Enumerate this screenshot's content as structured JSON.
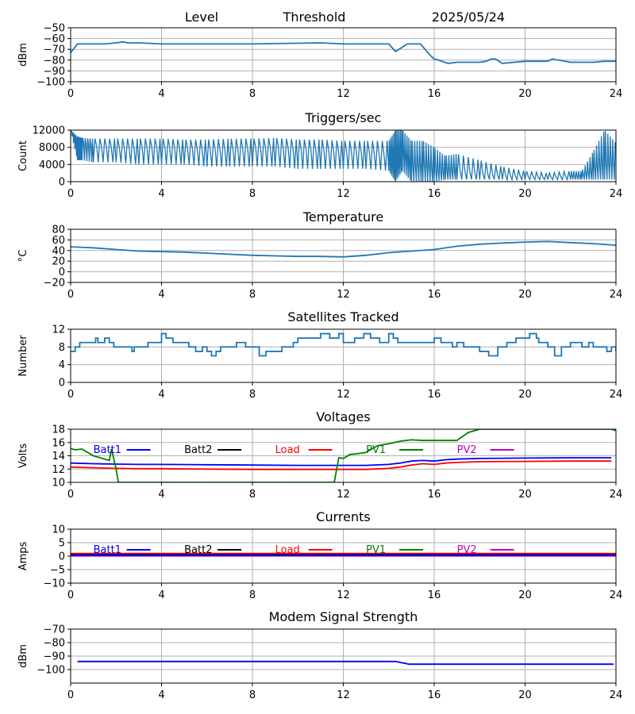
{
  "header": {
    "level": "Level",
    "threshold": "Threshold",
    "date": "2025/05/24"
  },
  "legend_labels": [
    "Batt1",
    "Batt2",
    "Load",
    "PV1",
    "PV2"
  ],
  "colors": {
    "blue": "#1f77b4",
    "batt1": "#0000ff",
    "batt2": "#000000",
    "load": "#ff0000",
    "pv1": "#008000",
    "pv2": "#bf00bf",
    "grid": "#b0b0b0"
  },
  "chart_data": [
    {
      "type": "line",
      "title": "",
      "ylabel": "dBm",
      "ylim": [
        -100,
        -50
      ],
      "yticks": [
        "−50",
        "−60",
        "−70",
        "−80",
        "−90",
        "−100"
      ],
      "ytick_values": [
        -50,
        -60,
        -70,
        -80,
        -90,
        -100
      ],
      "xlim": [
        0,
        24
      ],
      "xticks": [
        "0",
        "4",
        "8",
        "12",
        "16",
        "20",
        "24"
      ],
      "grid": true,
      "series": [
        {
          "color": "#1f77b4",
          "x": [
            0,
            0.3,
            0.4,
            1.5,
            2,
            2.3,
            2.5,
            3,
            4,
            5,
            8,
            11,
            12,
            13,
            14,
            14.3,
            14.6,
            14.8,
            15.4,
            15.8,
            16,
            16.2,
            16.6,
            17,
            18,
            18.3,
            18.5,
            18.7,
            19,
            20,
            21,
            21.2,
            22,
            23,
            23.5,
            24
          ],
          "y": [
            -73,
            -65,
            -65,
            -65,
            -64,
            -63,
            -64,
            -64,
            -65,
            -65,
            -65,
            -64,
            -65,
            -65,
            -65,
            -72,
            -68,
            -65,
            -65,
            -75,
            -79,
            -80,
            -83,
            -82,
            -82,
            -81,
            -79,
            -79,
            -83,
            -81,
            -81,
            -79,
            -82,
            -82,
            -81,
            -81
          ]
        }
      ]
    },
    {
      "type": "line",
      "title": "Triggers/sec",
      "ylabel": "Count",
      "ylim": [
        0,
        12000
      ],
      "yticks": [
        "12000",
        "8000",
        "4000",
        "0"
      ],
      "ytick_values": [
        12000,
        8000,
        4000,
        0
      ],
      "xlim": [
        0,
        24
      ],
      "xticks": [
        "0",
        "4",
        "8",
        "12",
        "16",
        "20",
        "24"
      ],
      "grid": true,
      "series": [
        {
          "color": "#1f77b4",
          "x": [
            0,
            0.3,
            0.5,
            1,
            2,
            3,
            4,
            5,
            6,
            7,
            8,
            9,
            10,
            11,
            12,
            13,
            14,
            14.3,
            14.6,
            15,
            15.5,
            16,
            16.5,
            17,
            18,
            19,
            20,
            21,
            22,
            22.5,
            23,
            23.5,
            24
          ],
          "y": [
            12000,
            9500,
            9000,
            8500,
            8000,
            8000,
            8200,
            8000,
            7500,
            7600,
            8000,
            8100,
            7800,
            7500,
            7200,
            7000,
            6500,
            2000,
            7000,
            3000,
            4000,
            2500,
            2000,
            2500,
            2000,
            1500,
            1200,
            1000,
            1300,
            1200,
            2500,
            4000,
            5000
          ],
          "min": [
            12000,
            5000,
            5000,
            4500,
            4500,
            4000,
            4000,
            4000,
            3500,
            3500,
            3500,
            3500,
            3000,
            3000,
            3000,
            3000,
            2500,
            0,
            2500,
            0,
            0,
            0,
            500,
            500,
            500,
            500,
            500,
            500,
            500,
            500,
            500,
            500,
            500
          ],
          "max": [
            12000,
            10500,
            10200,
            10000,
            10000,
            10000,
            10000,
            9800,
            9800,
            10000,
            10000,
            10200,
            9800,
            9800,
            9500,
            9500,
            9500,
            12000,
            12000,
            9500,
            9500,
            8000,
            6000,
            6500,
            5000,
            3500,
            2500,
            2000,
            2500,
            2500,
            7000,
            12000,
            9000
          ]
        }
      ]
    },
    {
      "type": "line",
      "title": "Temperature",
      "ylabel": "°C",
      "ylim": [
        -20,
        80
      ],
      "yticks": [
        "80",
        "60",
        "40",
        "20",
        "0",
        "−20"
      ],
      "ytick_values": [
        80,
        60,
        40,
        20,
        0,
        -20
      ],
      "xlim": [
        0,
        24
      ],
      "xticks": [
        "0",
        "4",
        "8",
        "12",
        "16",
        "20",
        "24"
      ],
      "grid": true,
      "series": [
        {
          "color": "#1f77b4",
          "x": [
            0,
            1,
            2,
            3,
            4,
            5,
            6,
            7,
            8,
            9,
            10,
            11,
            12,
            13,
            14,
            15,
            16,
            17,
            18,
            19,
            20,
            21,
            22,
            23,
            24
          ],
          "y": [
            47,
            45,
            42,
            39,
            38,
            37,
            35,
            33,
            31,
            30,
            29,
            29,
            28,
            31,
            36,
            39,
            42,
            48,
            52,
            54,
            56,
            57,
            55,
            53,
            50
          ]
        }
      ]
    },
    {
      "type": "line",
      "title": "Satellites Tracked",
      "ylabel": "Number",
      "ylim": [
        0,
        12
      ],
      "yticks": [
        "12",
        "8",
        "4",
        "0"
      ],
      "ytick_values": [
        12,
        8,
        4,
        0
      ],
      "xlim": [
        0,
        24
      ],
      "xticks": [
        "0",
        "4",
        "8",
        "12",
        "16",
        "20",
        "24"
      ],
      "grid": true,
      "step": true,
      "series": [
        {
          "color": "#1f77b4",
          "x": [
            0,
            0.2,
            0.4,
            1,
            1.1,
            1.2,
            1.5,
            1.7,
            1.9,
            2.5,
            2.7,
            2.8,
            3,
            3.4,
            3.8,
            4,
            4.2,
            4.5,
            5,
            5.2,
            5.5,
            5.8,
            6,
            6.2,
            6.4,
            6.6,
            7,
            7.3,
            7.7,
            8,
            8.3,
            8.6,
            8.8,
            9.3,
            9.8,
            10,
            10.5,
            11,
            11.4,
            11.6,
            11.8,
            12,
            12.2,
            12.5,
            12.9,
            13.2,
            13.6,
            14,
            14.2,
            14.4,
            15,
            15.5,
            16,
            16.3,
            16.8,
            17,
            17.3,
            17.5,
            18,
            18.2,
            18.4,
            18.8,
            19.2,
            19.6,
            20,
            20.2,
            20.5,
            20.6,
            21,
            21.3,
            21.6,
            22,
            22.5,
            22.8,
            23,
            23.3,
            23.6,
            23.8,
            24
          ],
          "y": [
            7,
            8,
            9,
            9,
            10,
            9,
            10,
            9,
            8,
            8,
            7,
            8,
            8,
            9,
            9,
            11,
            10,
            9,
            9,
            8,
            7,
            8,
            7,
            6,
            7,
            8,
            8,
            9,
            8,
            8,
            6,
            7,
            7,
            8,
            9,
            10,
            10,
            11,
            10,
            10,
            11,
            9,
            9,
            10,
            11,
            10,
            9,
            11,
            10,
            9,
            9,
            9,
            10,
            9,
            8,
            9,
            8,
            8,
            7,
            7,
            6,
            8,
            9,
            10,
            10,
            11,
            10,
            9,
            8,
            6,
            8,
            9,
            8,
            9,
            8,
            8,
            7,
            8,
            7
          ]
        }
      ]
    },
    {
      "type": "line",
      "title": "Voltages",
      "ylabel": "Volts",
      "ylim": [
        10,
        18
      ],
      "yticks": [
        "18",
        "16",
        "14",
        "12",
        "10"
      ],
      "ytick_values": [
        18,
        16,
        14,
        12,
        10
      ],
      "xlim": [
        0,
        24
      ],
      "xticks": [
        "0",
        "4",
        "8",
        "12",
        "16",
        "20",
        "24"
      ],
      "grid": true,
      "legend_positions": [
        1,
        5,
        9,
        13,
        17
      ],
      "series": [
        {
          "name": "Batt1",
          "color": "#0000ff",
          "x": [
            0,
            1,
            2,
            3,
            4,
            6,
            8,
            10,
            11,
            12,
            13,
            14,
            14.5,
            15,
            15.5,
            16,
            16.5,
            17,
            18,
            20,
            22,
            23.8
          ],
          "y": [
            12.9,
            12.8,
            12.75,
            12.7,
            12.7,
            12.65,
            12.6,
            12.55,
            12.55,
            12.55,
            12.55,
            12.7,
            12.9,
            13.2,
            13.3,
            13.2,
            13.4,
            13.5,
            13.6,
            13.65,
            13.7,
            13.7
          ]
        },
        {
          "name": "Load",
          "color": "#ff0000",
          "x": [
            0,
            1,
            2,
            3,
            4,
            6,
            8,
            10,
            11,
            12,
            13,
            14,
            14.5,
            15,
            15.5,
            16,
            16.5,
            17,
            18,
            20,
            22,
            23.8
          ],
          "y": [
            12.3,
            12.2,
            12.1,
            12.05,
            12.05,
            12.0,
            11.95,
            11.95,
            11.95,
            11.95,
            11.95,
            12.1,
            12.3,
            12.6,
            12.8,
            12.7,
            12.9,
            13.0,
            13.1,
            13.15,
            13.2,
            13.2
          ]
        },
        {
          "name": "PV1",
          "color": "#008000",
          "x": [
            0,
            0.2,
            0.5,
            1,
            1.5,
            1.7,
            1.8,
            2,
            2.1,
            11.6,
            11.8,
            12,
            12.3,
            12.6,
            13,
            13.5,
            14,
            14.5,
            15,
            15.5,
            16,
            17,
            17.5,
            18,
            18.5,
            23.8,
            24
          ],
          "y": [
            15.1,
            14.9,
            15.0,
            14.0,
            13.5,
            13.3,
            15.0,
            12.0,
            10.0,
            10.0,
            13.7,
            13.6,
            14.2,
            14.3,
            14.5,
            15.5,
            15.8,
            16.2,
            16.4,
            16.3,
            16.3,
            16.3,
            17.5,
            18.0,
            18.0,
            18.0,
            17.8
          ]
        }
      ]
    },
    {
      "type": "line",
      "title": "Currents",
      "ylabel": "Amps",
      "ylim": [
        -10,
        10
      ],
      "yticks": [
        "10",
        "5",
        "0",
        "−5",
        "−10"
      ],
      "ytick_values": [
        10,
        5,
        0,
        -5,
        -10
      ],
      "xlim": [
        0,
        24
      ],
      "xticks": [
        "0",
        "4",
        "8",
        "12",
        "16",
        "20",
        "24"
      ],
      "grid": true,
      "legend_positions": [
        1,
        5,
        9,
        13,
        17
      ],
      "series": [
        {
          "name": "Load",
          "color": "#ff0000",
          "x": [
            0,
            24
          ],
          "y": [
            1.0,
            1.0
          ]
        },
        {
          "name": "Batt2",
          "color": "#000000",
          "x": [
            0,
            24
          ],
          "y": [
            0.5,
            0.5
          ]
        },
        {
          "name": "PV2",
          "color": "#bf00bf",
          "x": [
            0,
            24
          ],
          "y": [
            0.1,
            0.1
          ]
        },
        {
          "name": "Batt1",
          "color": "#0000ff",
          "x": [
            0,
            24
          ],
          "y": [
            0.3,
            0.3
          ]
        }
      ]
    },
    {
      "type": "line",
      "title": "Modem Signal Strength",
      "ylabel": "dBm",
      "ylim": [
        -110,
        -70
      ],
      "yticks": [
        "−70",
        "−80",
        "−90",
        "−100"
      ],
      "ytick_values": [
        -70,
        -80,
        -90,
        -100
      ],
      "xlim": [
        0,
        24
      ],
      "xticks": [
        "0",
        "4",
        "8",
        "12",
        "16",
        "20",
        "24"
      ],
      "grid": true,
      "series": [
        {
          "color": "#0000ff",
          "x": [
            0.3,
            14.3,
            14.9,
            23.9
          ],
          "y": [
            -94,
            -94,
            -96,
            -96
          ]
        }
      ]
    }
  ]
}
